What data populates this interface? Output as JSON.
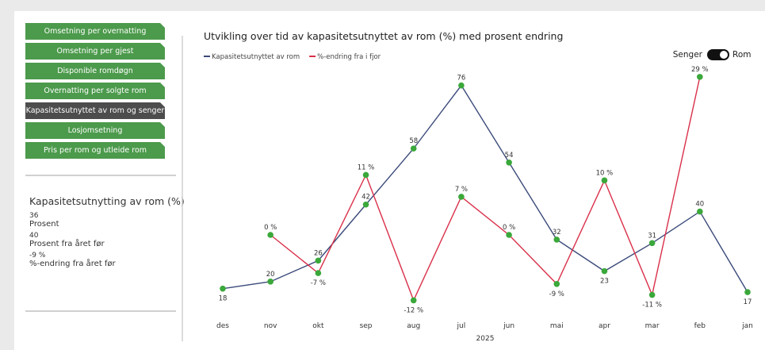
{
  "nav": {
    "items": [
      "Omsetning per overnatting",
      "Omsetning per gjest",
      "Disponible romdøgn",
      "Overnatting per solgte rom",
      "Kapasitetsutnyttet av rom og senger",
      "Losjomsetning",
      "Pris per rom og utleide rom"
    ],
    "selected": 4
  },
  "kpi": {
    "title": "Kapasitetsutnytting av rom (%)",
    "items": [
      {
        "value": "36",
        "label": "Prosent"
      },
      {
        "value": "40",
        "label": "Prosent fra året før"
      },
      {
        "value": "-9 %",
        "label": "%-endring fra året før"
      }
    ]
  },
  "toggle": {
    "left": "Senger",
    "right": "Rom"
  },
  "chart_data": {
    "type": "line",
    "title": "Utvikling over tid av kapasitetsutnyttet av rom (%) med prosent endring",
    "categories": [
      "des",
      "nov",
      "okt",
      "sep",
      "aug",
      "jul",
      "jun",
      "mai",
      "apr",
      "mar",
      "feb",
      "jan"
    ],
    "x_label": "2025",
    "series": [
      {
        "name": "Kapasitetsutnyttet av rom",
        "color": "#3b4a7a",
        "values": [
          18,
          20,
          26,
          42,
          58,
          76,
          54,
          32,
          23,
          31,
          40,
          17
        ]
      },
      {
        "name": "%-endring fra i fjor",
        "color": "#d9304a",
        "axis": "y2",
        "values": [
          null,
          0,
          -7,
          11,
          -12,
          7,
          0,
          -9,
          10,
          -11,
          29,
          null
        ],
        "value_labels": [
          null,
          "0 %",
          "-7 %",
          "11 %",
          "-12 %",
          "7 %",
          "0 %",
          "-9 %",
          "10 %",
          "-11 %",
          "29 %",
          null
        ]
      }
    ],
    "marker_color": "#3aa83a",
    "ylim": [
      10,
      80
    ],
    "y2lim": [
      -15,
      30
    ],
    "grid": false
  }
}
